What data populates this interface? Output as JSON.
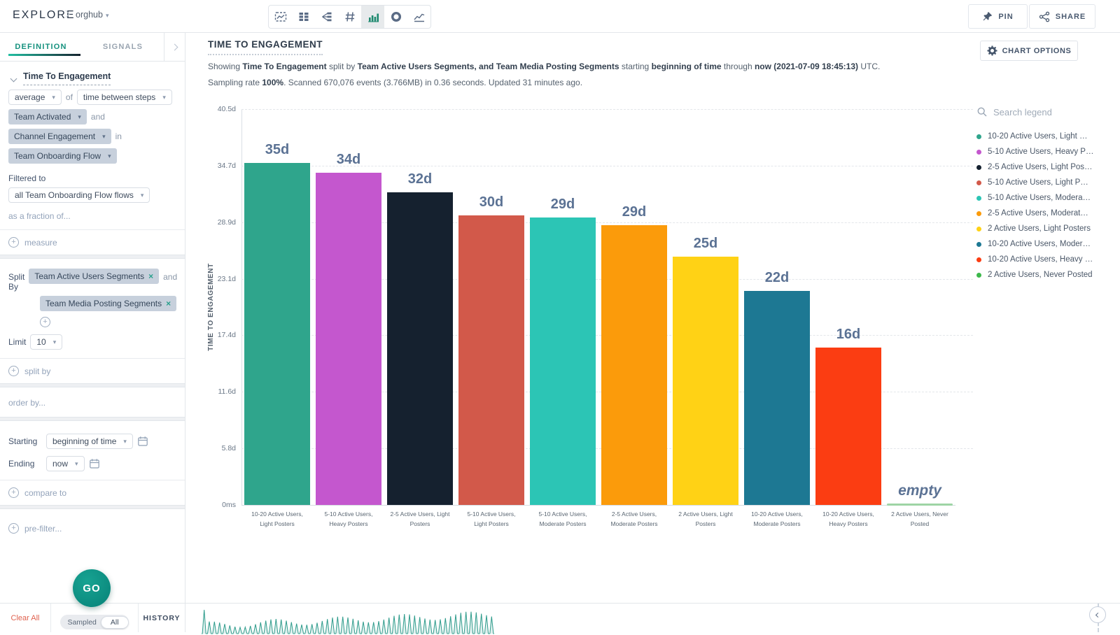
{
  "topbar": {
    "brand": "EXPLORE",
    "workspace": "orghub",
    "pin_label": "PIN",
    "share_label": "SHARE",
    "chart_types": [
      "time-series",
      "table",
      "flow",
      "number",
      "bar",
      "donut",
      "line"
    ],
    "active_chart_type": "bar"
  },
  "sidebar": {
    "tabs": {
      "definition": "DEFINITION",
      "signals": "SIGNALS"
    },
    "measure": {
      "title": "Time To Engagement",
      "aggregation": "average",
      "of_label": "of",
      "metric": "time between steps",
      "from_step": "Team Activated",
      "and_label": "and",
      "to_step": "Channel Engagement",
      "in_label": "in",
      "flow": "Team Onboarding Flow",
      "filtered_to_label": "Filtered to",
      "filter_value": "all Team Onboarding Flow flows",
      "fraction_link": "as a fraction of...",
      "add_measure_label": "measure"
    },
    "split": {
      "label": "Split By",
      "chip1": "Team Active Users Segments",
      "and_label": "and",
      "chip2": "Team Media Posting Segments",
      "limit_label": "Limit",
      "limit_value": "10",
      "add_split_label": "split by"
    },
    "order_by_link": "order by...",
    "time": {
      "starting_label": "Starting",
      "starting_value": "beginning of time",
      "ending_label": "Ending",
      "ending_value": "now"
    },
    "compare_link": "compare to",
    "prefilter_link": "pre-filter...",
    "go_label": "GO",
    "footer": {
      "clear_all": "Clear All",
      "sampled": "Sampled",
      "all": "All",
      "history": "HISTORY"
    }
  },
  "main": {
    "title": "TIME TO ENGAGEMENT",
    "subtitle_line1": [
      {
        "t": "Showing ",
        "b": 0
      },
      {
        "t": "Time To Engagement",
        "b": 1
      },
      {
        "t": " split by ",
        "b": 0
      },
      {
        "t": "Team Active Users Segments, and Team Media Posting Segments",
        "b": 1
      },
      {
        "t": " starting ",
        "b": 0
      },
      {
        "t": "beginning of time",
        "b": 1
      },
      {
        "t": " through ",
        "b": 0
      },
      {
        "t": "now (2021-07-09 18:45:13)",
        "b": 1
      },
      {
        "t": " UTC.",
        "b": 0
      }
    ],
    "subtitle_line2": [
      {
        "t": "Sampling rate ",
        "b": 0
      },
      {
        "t": "100%",
        "b": 1
      },
      {
        "t": ". Scanned 670,076 events (3.766MB) in 0.36 seconds. Updated 31 minutes ago.",
        "b": 0
      }
    ],
    "chart_options_label": "CHART OPTIONS",
    "legend": {
      "search_placeholder": "Search legend",
      "items": [
        {
          "label": "10-20 Active Users, Light …",
          "color": "#2fa58c"
        },
        {
          "label": "5-10 Active Users, Heavy P…",
          "color": "#c457ce"
        },
        {
          "label": "2-5 Active Users, Light Pos…",
          "color": "#15212f"
        },
        {
          "label": "5-10 Active Users, Light P…",
          "color": "#d2594a"
        },
        {
          "label": "5-10 Active Users, Modera…",
          "color": "#2cc5b5"
        },
        {
          "label": "2-5 Active Users, Moderat…",
          "color": "#fb9b0b"
        },
        {
          "label": "2 Active Users, Light Posters",
          "color": "#ffd215"
        },
        {
          "label": "10-20 Active Users, Moder…",
          "color": "#1d7893"
        },
        {
          "label": "10-20 Active Users, Heavy …",
          "color": "#fb3d12"
        },
        {
          "label": "2 Active Users, Never Posted",
          "color": "#3db84b"
        }
      ]
    }
  },
  "chart_data": {
    "type": "bar",
    "title": "TIME TO ENGAGEMENT",
    "ylabel": "TIME TO ENGAGEMENT",
    "y_unit": "days",
    "ylim": [
      0,
      40.5
    ],
    "grid": "horizontal-dashed",
    "legend_position": "right",
    "yticks": [
      {
        "v": 40.5,
        "label": "40.5d"
      },
      {
        "v": 34.7,
        "label": "34.7d"
      },
      {
        "v": 28.9,
        "label": "28.9d"
      },
      {
        "v": 23.1,
        "label": "23.1d"
      },
      {
        "v": 17.4,
        "label": "17.4d"
      },
      {
        "v": 11.6,
        "label": "11.6d"
      },
      {
        "v": 5.8,
        "label": "5.8d"
      },
      {
        "v": 0,
        "label": "0ms"
      }
    ],
    "categories": [
      "10-20 Active Users, Light Posters",
      "5-10 Active Users, Heavy Posters",
      "2-5 Active Users, Light Posters",
      "5-10 Active Users, Light Posters",
      "5-10 Active Users, Moderate Posters",
      "2-5 Active Users, Moderate Posters",
      "2 Active Users, Light Posters",
      "10-20 Active Users, Moderate Posters",
      "10-20 Active Users, Heavy Posters",
      "2 Active Users, Never Posted"
    ],
    "values_days": [
      35,
      34,
      32,
      29.6,
      29.4,
      28.6,
      25.4,
      21.9,
      16.1,
      null
    ],
    "bar_labels": [
      "35d",
      "34d",
      "32d",
      "30d",
      "29d",
      "29d",
      "25d",
      "22d",
      "16d",
      "empty"
    ],
    "colors": [
      "#2fa58c",
      "#c457ce",
      "#15212f",
      "#d2594a",
      "#2cc5b5",
      "#fb9b0b",
      "#ffd215",
      "#1d7893",
      "#fb3d12",
      null
    ],
    "empty_baseline_color": "#9ed4a5"
  }
}
